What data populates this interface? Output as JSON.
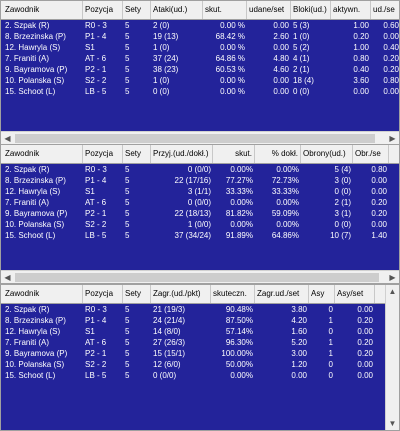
{
  "panels": [
    {
      "columns": [
        "Zawodnik",
        "Pozycja",
        "Sety",
        "Ataki(ud.)",
        "skut.",
        "udane/set",
        "Bloki(ud.)",
        "aktywn.",
        "ud./se"
      ],
      "rows": [
        [
          "2. Szpak (R)",
          "R0 - 3",
          "5",
          "2 (0)",
          "0.00 %",
          "0.00",
          "5 (3)",
          "1.00",
          "0.60"
        ],
        [
          "8. Brzezinska (P)",
          "P1 - 4",
          "5",
          "19 (13)",
          "68.42 %",
          "2.60",
          "1 (0)",
          "0.20",
          "0.00"
        ],
        [
          "12. Hawryla (S)",
          "S1",
          "5",
          "1 (0)",
          "0.00 %",
          "0.00",
          "5 (2)",
          "1.00",
          "0.40"
        ],
        [
          "7. Franiti (A)",
          "AT - 6",
          "5",
          "37 (24)",
          "64.86 %",
          "4.80",
          "4 (1)",
          "0.80",
          "0.20"
        ],
        [
          "9. Bayramova (P)",
          "P2 - 1",
          "5",
          "38 (23)",
          "60.53 %",
          "4.60",
          "2 (1)",
          "0.40",
          "0.20"
        ],
        [
          "10. Polanska (S)",
          "S2 - 2",
          "5",
          "1 (0)",
          "0.00 %",
          "0.00",
          "18 (4)",
          "3.60",
          "0.80"
        ],
        [
          "15. Schoot (L)",
          "LB - 5",
          "5",
          "0 (0)",
          "0.00 %",
          "0.00",
          "0 (0)",
          "0.00",
          "0.00"
        ]
      ]
    },
    {
      "columns": [
        "Zawodnik",
        "Pozycja",
        "Sety",
        "Przyj.(ud./dokł.)",
        "skut.",
        "% dokł.",
        "Obrony(ud.)",
        "Obr./se"
      ],
      "rows": [
        [
          "2. Szpak (R)",
          "R0 - 3",
          "5",
          "0 (0/0)",
          "0.00%",
          "0.00%",
          "5 (4)",
          "0.80"
        ],
        [
          "8. Brzezinska (P)",
          "P1 - 4",
          "5",
          "22 (17/16)",
          "77.27%",
          "72.73%",
          "3 (0)",
          "0.00"
        ],
        [
          "12. Hawryla (S)",
          "S1",
          "5",
          "3 (1/1)",
          "33.33%",
          "33.33%",
          "0 (0)",
          "0.00"
        ],
        [
          "7. Franiti (A)",
          "AT - 6",
          "5",
          "0 (0/0)",
          "0.00%",
          "0.00%",
          "2 (1)",
          "0.20"
        ],
        [
          "9. Bayramova (P)",
          "P2 - 1",
          "5",
          "22 (18/13)",
          "81.82%",
          "59.09%",
          "3 (1)",
          "0.20"
        ],
        [
          "10. Polanska (S)",
          "S2 - 2",
          "5",
          "1 (0/0)",
          "0.00%",
          "0.00%",
          "0 (0)",
          "0.00"
        ],
        [
          "15. Schoot (L)",
          "LB - 5",
          "5",
          "37 (34/24)",
          "91.89%",
          "64.86%",
          "10 (7)",
          "1.40"
        ]
      ]
    },
    {
      "columns": [
        "Zawodnik",
        "Pozycja",
        "Sety",
        "Zagr.(ud./pkt)",
        "skuteczn.",
        "Zagr.ud./set",
        "Asy",
        "Asy/set"
      ],
      "rows": [
        [
          "2. Szpak (R)",
          "R0 - 3",
          "5",
          "21 (19/3)",
          "90.48%",
          "3.80",
          "0",
          "0.00"
        ],
        [
          "8. Brzezinska (P)",
          "P1 - 4",
          "5",
          "24 (21/4)",
          "87.50%",
          "4.20",
          "1",
          "0.20"
        ],
        [
          "12. Hawryla (S)",
          "S1",
          "5",
          "14 (8/0)",
          "57.14%",
          "1.60",
          "0",
          "0.00"
        ],
        [
          "7. Franiti (A)",
          "AT - 6",
          "5",
          "27 (26/3)",
          "96.30%",
          "5.20",
          "1",
          "0.20"
        ],
        [
          "9. Bayramova (P)",
          "P2 - 1",
          "5",
          "15 (15/1)",
          "100.00%",
          "3.00",
          "1",
          "0.20"
        ],
        [
          "10. Polanska (S)",
          "S2 - 2",
          "5",
          "12 (6/0)",
          "50.00%",
          "1.20",
          "0",
          "0.00"
        ],
        [
          "15. Schoot (L)",
          "LB - 5",
          "5",
          "0 (0/0)",
          "0.00%",
          "0.00",
          "0",
          "0.00"
        ]
      ]
    }
  ],
  "icons": {
    "scroll_left": "arrow-left-icon",
    "scroll_right": "arrow-right-icon",
    "scroll_up": "arrow-up-icon",
    "scroll_down": "arrow-down-icon"
  },
  "colors": {
    "row_background": "#23239a",
    "row_text": "#ffffff",
    "header_background": "#f0f0f0"
  }
}
